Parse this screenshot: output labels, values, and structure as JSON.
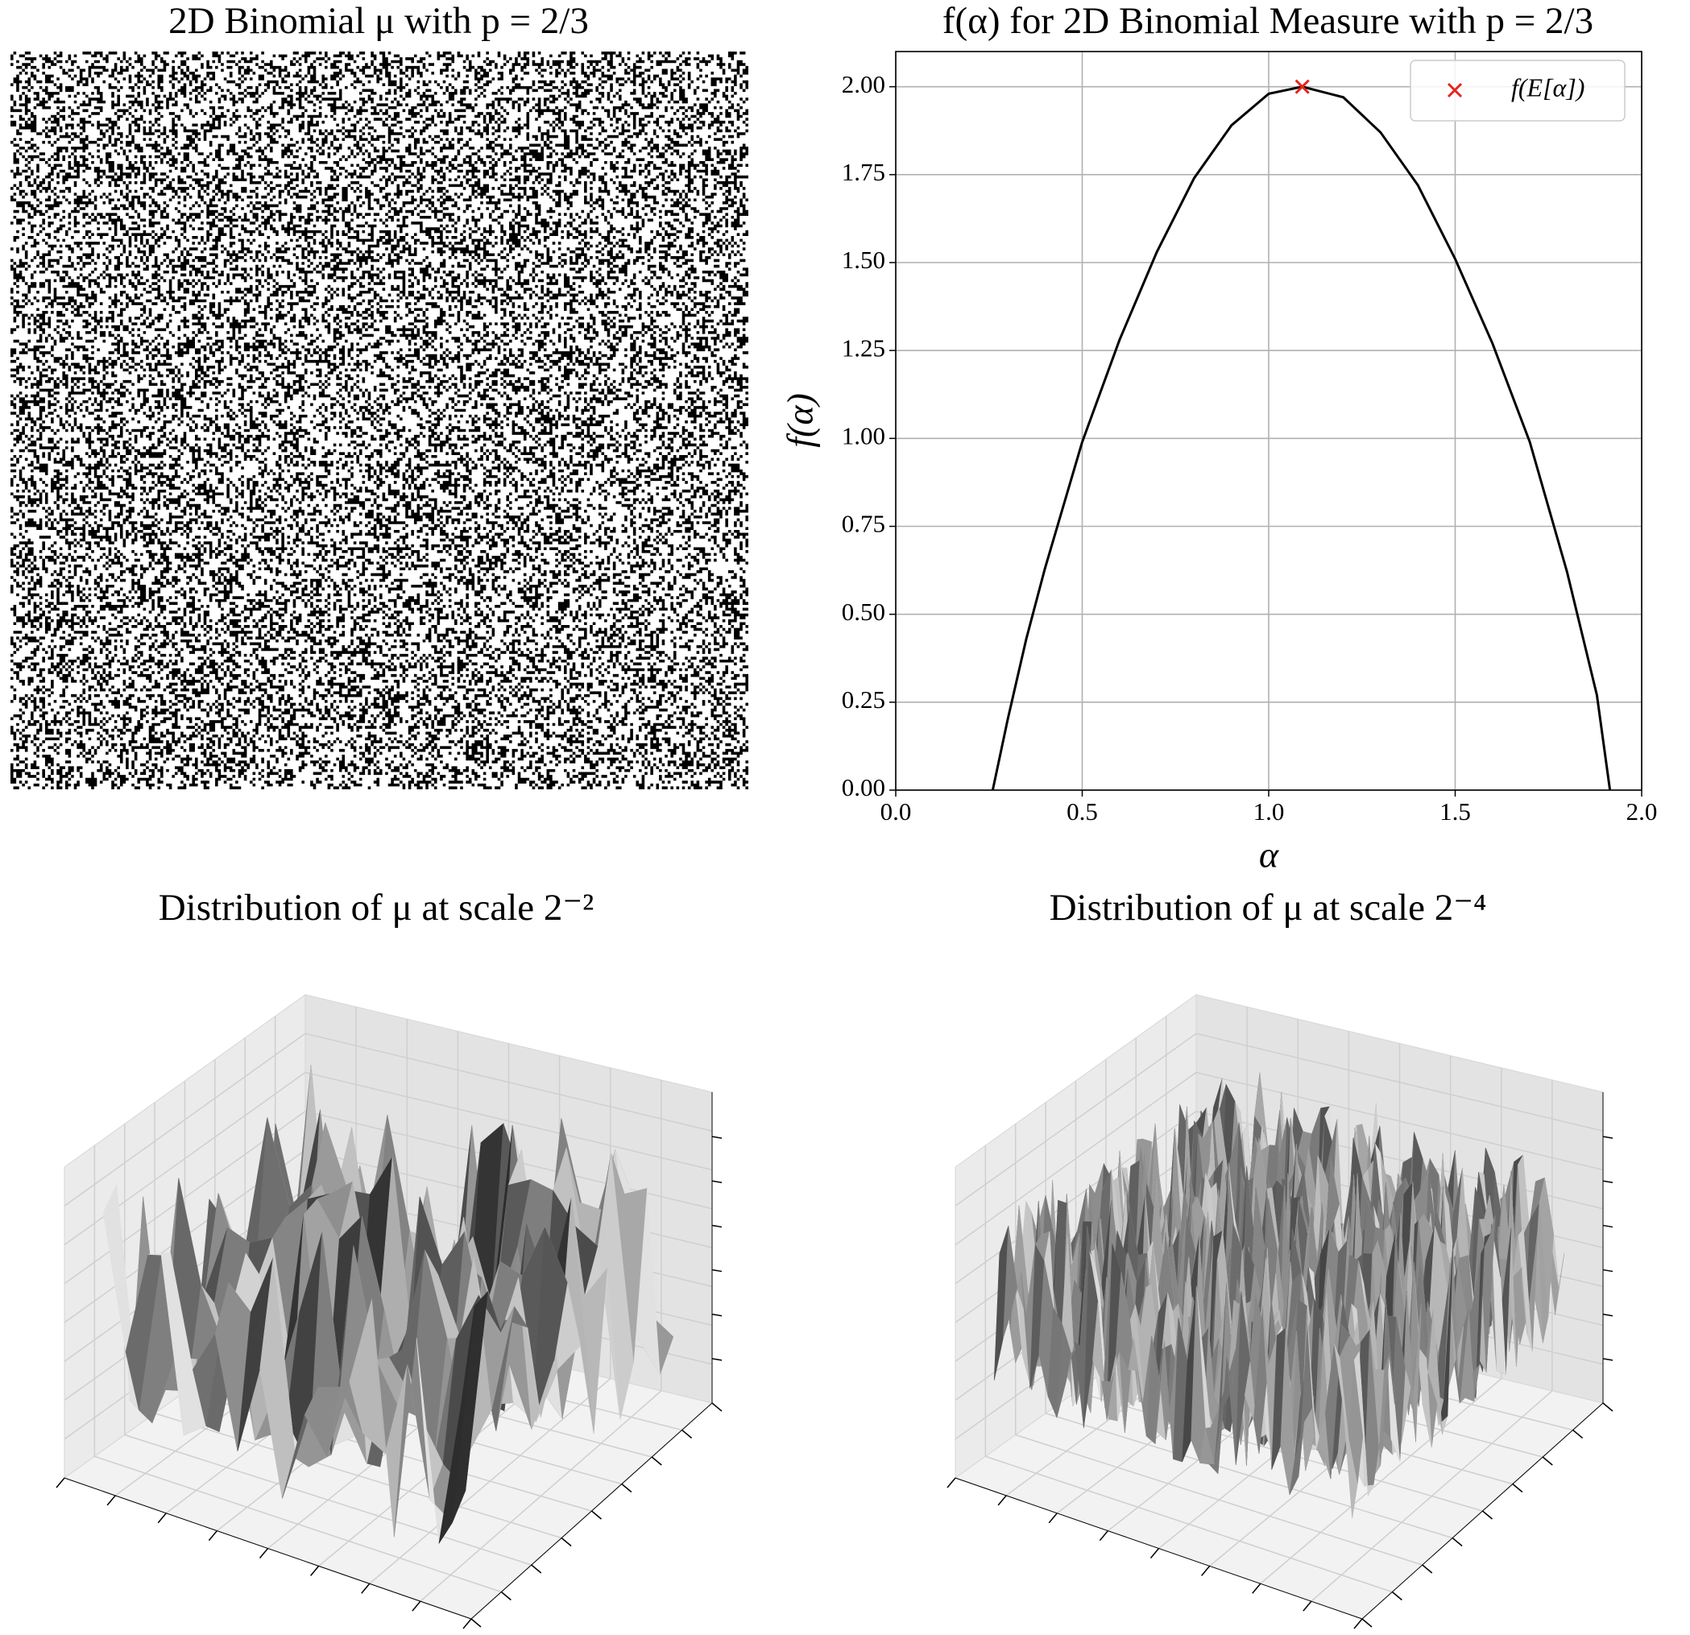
{
  "chart_data": [
    {
      "type": "image",
      "title": "2D Binomial μ with p = 2/3"
    },
    {
      "type": "line",
      "title": "f(α) for 2D Binomial Measure with p = 2/3",
      "xlabel": "α",
      "ylabel": "f(α)",
      "x": [
        0.26,
        0.3,
        0.35,
        0.4,
        0.5,
        0.6,
        0.7,
        0.8,
        0.9,
        1.0,
        1.09,
        1.2,
        1.3,
        1.4,
        1.5,
        1.6,
        1.7,
        1.8,
        1.88,
        1.915
      ],
      "series": [
        {
          "color": "#000000",
          "values": [
            0,
            0.2,
            0.43,
            0.63,
            0.99,
            1.28,
            1.53,
            1.74,
            1.89,
            1.98,
            2.0,
            1.97,
            1.87,
            1.72,
            1.51,
            1.27,
            0.99,
            0.62,
            0.27,
            0
          ]
        },
        {
          "name": "f(E[α])",
          "color": "#e8231e",
          "marker": "x",
          "x": [
            1.09
          ],
          "values": [
            2.0
          ]
        }
      ],
      "xlim": [
        0,
        2
      ],
      "ylim": [
        0,
        2.1
      ],
      "xticks": [
        {
          "value": 0,
          "label": "0.0"
        },
        0.5,
        {
          "value": 1,
          "label": "1.0"
        },
        1.5,
        {
          "value": 2,
          "label": "2.0"
        }
      ],
      "yticks": [
        {
          "value": 0,
          "label": "0.00"
        },
        {
          "value": 0.25,
          "label": "0.25"
        },
        {
          "value": 0.5,
          "label": "0.50"
        },
        {
          "value": 0.75,
          "label": "0.75"
        },
        {
          "value": 1,
          "label": "1.00"
        },
        {
          "value": 1.25,
          "label": "1.25"
        },
        {
          "value": 1.5,
          "label": "1.50"
        },
        {
          "value": 1.75,
          "label": "1.75"
        },
        {
          "value": 2,
          "label": "2.00"
        }
      ],
      "grid": true,
      "legend": "upper right"
    },
    {
      "type": "surface3d",
      "title": "Distribution of μ at scale 2⁻²"
    },
    {
      "type": "surface3d",
      "title": "Distribution of μ at scale 2⁻⁴"
    }
  ]
}
